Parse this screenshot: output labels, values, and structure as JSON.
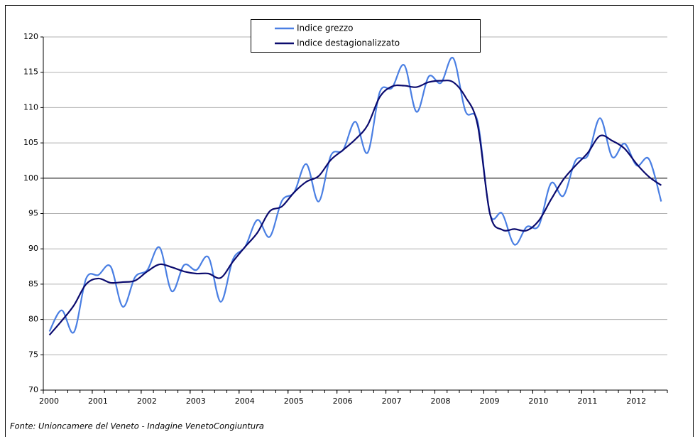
{
  "chart_data": {
    "type": "line",
    "source": "Fonte: Unioncamere del Veneto - Indagine VenetoCongiuntura",
    "x": [
      2000.125,
      2000.375,
      2000.625,
      2000.875,
      2001.125,
      2001.375,
      2001.625,
      2001.875,
      2002.125,
      2002.375,
      2002.625,
      2002.875,
      2003.125,
      2003.375,
      2003.625,
      2003.875,
      2004.125,
      2004.375,
      2004.625,
      2004.875,
      2005.125,
      2005.375,
      2005.625,
      2005.875,
      2006.125,
      2006.375,
      2006.625,
      2006.875,
      2007.125,
      2007.375,
      2007.625,
      2007.875,
      2008.125,
      2008.375,
      2008.625,
      2008.875,
      2009.125,
      2009.375,
      2009.625,
      2009.875,
      2010.125,
      2010.375,
      2010.625,
      2010.875,
      2011.125,
      2011.375,
      2011.625,
      2011.875,
      2012.125,
      2012.375,
      2012.625
    ],
    "series": [
      {
        "name": "Indice grezzo",
        "color": "#4a7fe3",
        "values": [
          78.3,
          81.3,
          78.2,
          85.8,
          86.3,
          87.5,
          81.8,
          86.0,
          87.0,
          90.2,
          84.0,
          87.7,
          87.0,
          88.8,
          82.5,
          88.5,
          90.3,
          94.1,
          91.7,
          96.8,
          98.0,
          102.0,
          96.7,
          103.2,
          104.0,
          108.0,
          103.6,
          112.2,
          112.8,
          116.0,
          109.4,
          114.4,
          113.5,
          117.0,
          109.5,
          108.0,
          95.0,
          95.0,
          90.6,
          93.1,
          93.3,
          99.3,
          97.5,
          102.5,
          103.2,
          108.5,
          103.0,
          104.9,
          101.8,
          102.7,
          96.7
        ]
      },
      {
        "name": "Indice destagionalizzato",
        "color": "#0b0b6e",
        "values": [
          77.8,
          79.8,
          82.0,
          85.0,
          85.8,
          85.2,
          85.3,
          85.5,
          86.8,
          87.8,
          87.4,
          86.8,
          86.5,
          86.5,
          85.9,
          88.2,
          90.3,
          92.3,
          95.3,
          96.0,
          98.0,
          99.5,
          100.3,
          102.6,
          104.0,
          105.5,
          107.5,
          111.5,
          113.0,
          113.1,
          112.9,
          113.6,
          113.8,
          113.6,
          111.5,
          107.5,
          95.0,
          92.7,
          92.8,
          92.6,
          94.0,
          97.0,
          99.8,
          101.8,
          103.6,
          106.0,
          105.3,
          104.2,
          102.0,
          100.2,
          99.0
        ]
      }
    ],
    "xlim": [
      2000,
      2012.75
    ],
    "xticks": [
      2000,
      2001,
      2002,
      2003,
      2004,
      2005,
      2006,
      2007,
      2008,
      2009,
      2010,
      2011,
      2012
    ],
    "ylim": [
      70,
      120
    ],
    "yticks": [
      70,
      75,
      80,
      85,
      90,
      95,
      100,
      105,
      110,
      115,
      120
    ],
    "grid": true,
    "hline": 100,
    "legend": "top"
  }
}
